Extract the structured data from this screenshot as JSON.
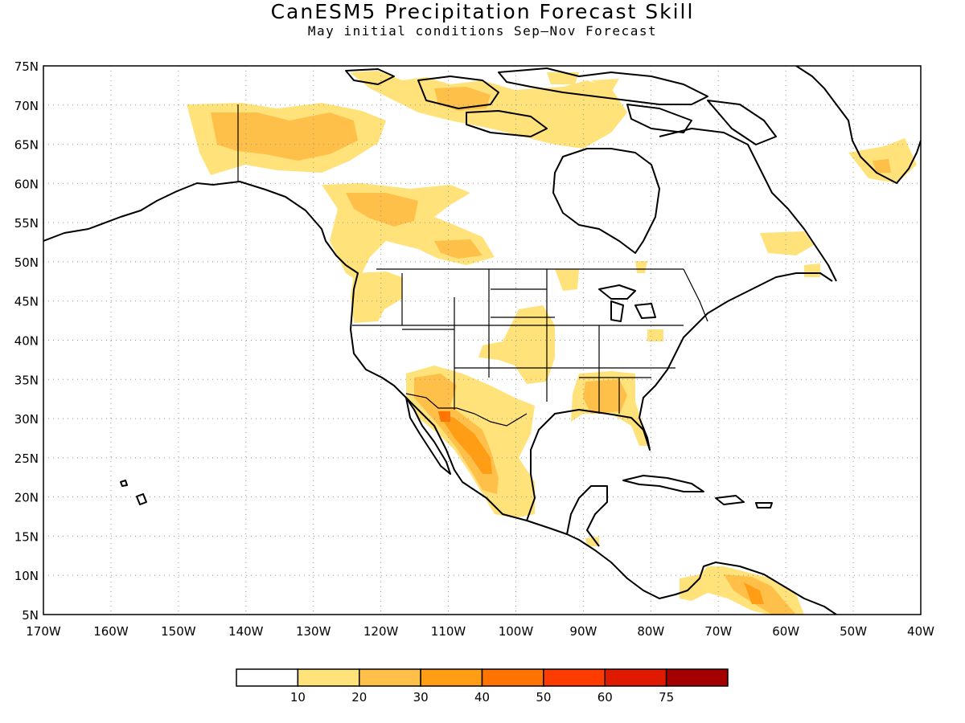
{
  "title": "CanESM5 Precipitation Forecast Skill",
  "subtitle": "May initial conditions   Sep–Nov Forecast",
  "lat_labels": [
    "75N",
    "70N",
    "65N",
    "60N",
    "55N",
    "50N",
    "45N",
    "40N",
    "35N",
    "30N",
    "25N",
    "20N",
    "15N",
    "10N",
    "5N"
  ],
  "lon_labels": [
    "170W",
    "160W",
    "150W",
    "140W",
    "130W",
    "120W",
    "110W",
    "100W",
    "90W",
    "80W",
    "70W",
    "60W",
    "50W",
    "40W"
  ],
  "legend": {
    "labels": [
      "10",
      "20",
      "30",
      "40",
      "50",
      "60",
      "75"
    ],
    "colors": [
      "#ffffff",
      "#ffe27a",
      "#ffc04a",
      "#ff9e15",
      "#ff7400",
      "#ff3c00",
      "#e01a00",
      "#a50000"
    ]
  }
}
